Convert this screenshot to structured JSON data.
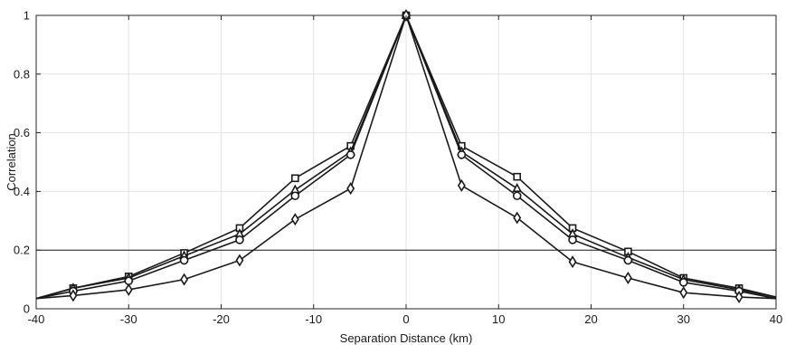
{
  "chart_data": {
    "type": "line",
    "title": "",
    "xlabel": "Separation Distance (km)",
    "ylabel": "Correlation",
    "xlim": [
      -40,
      40
    ],
    "ylim": [
      0,
      1
    ],
    "xticks": [
      -40,
      -30,
      -20,
      -10,
      0,
      10,
      20,
      30,
      40
    ],
    "yticks": [
      0,
      0.2,
      0.4,
      0.6,
      0.8,
      1
    ],
    "xtick_labels": [
      "-40",
      "-30",
      "-20",
      "-10",
      "0",
      "10",
      "20",
      "30",
      "40"
    ],
    "ytick_labels": [
      "0",
      "0.2",
      "0.4",
      "0.6",
      "0.8",
      "1"
    ],
    "grid": true,
    "reference_line_y": 0.2,
    "x": [
      -40,
      -36,
      -30,
      -24,
      -18,
      -12,
      -6,
      0,
      6,
      12,
      18,
      24,
      30,
      36,
      40
    ],
    "series": [
      {
        "marker": "square",
        "values": [
          0.035,
          0.07,
          0.11,
          0.19,
          0.275,
          0.445,
          0.555,
          1.0,
          0.555,
          0.45,
          0.275,
          0.195,
          0.105,
          0.07,
          0.04
        ]
      },
      {
        "marker": "triangle",
        "values": [
          0.035,
          0.07,
          0.105,
          0.18,
          0.255,
          0.405,
          0.535,
          1.0,
          0.535,
          0.41,
          0.255,
          0.175,
          0.1,
          0.065,
          0.04
        ]
      },
      {
        "marker": "circle",
        "values": [
          0.035,
          0.06,
          0.095,
          0.165,
          0.235,
          0.385,
          0.525,
          1.0,
          0.525,
          0.385,
          0.235,
          0.165,
          0.09,
          0.06,
          0.035
        ]
      },
      {
        "marker": "diamond",
        "values": [
          0.035,
          0.045,
          0.065,
          0.1,
          0.165,
          0.305,
          0.41,
          1.0,
          0.42,
          0.31,
          0.16,
          0.105,
          0.055,
          0.04,
          0.035
        ]
      }
    ],
    "colors": {
      "line": "#1a1a1a",
      "grid": "#e3e3e3",
      "axis": "#262626",
      "reference": "#1a1a1a"
    }
  }
}
